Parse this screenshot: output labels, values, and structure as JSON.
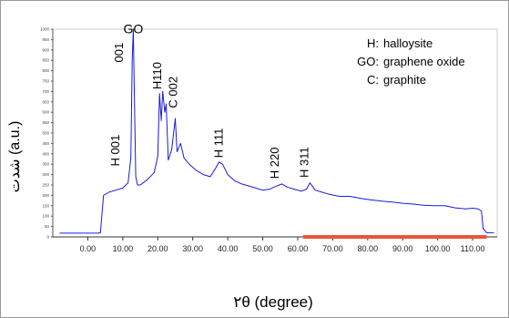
{
  "chart_data": {
    "type": "line",
    "xlabel": "۲θ (degree)",
    "ylabel": "شدت (a.u.)",
    "xlim": [
      -10,
      117
    ],
    "ylim": [
      0,
      1000
    ],
    "x_ticks": [
      "0.00",
      "10.00",
      "20.00",
      "30.00",
      "40.00",
      "50.00",
      "60.00",
      "70.00",
      "80.00",
      "90.00",
      "100.00",
      "110.00"
    ],
    "y_ticks": [
      "0",
      "50",
      "100",
      "150",
      "200",
      "250",
      "300",
      "350",
      "400",
      "450",
      "500",
      "550",
      "600",
      "650",
      "700",
      "750",
      "800",
      "850",
      "900",
      "950",
      "1000"
    ],
    "grid": false,
    "series": [
      {
        "color": "#1a1adc",
        "x": [
          -8,
          0,
          3,
          3.6,
          4.5,
          6,
          8,
          10,
          11.5,
          12.3,
          12.7,
          13.0,
          13.3,
          13.7,
          14.2,
          15,
          17,
          19,
          20,
          20.5,
          21,
          21.4,
          22,
          22.4,
          23,
          24,
          25,
          25.5,
          26.5,
          27.5,
          29,
          31,
          33,
          35,
          36.5,
          37.5,
          38.5,
          40,
          42,
          44,
          46,
          48,
          50,
          52,
          54,
          55.5,
          57,
          59,
          61,
          62.5,
          63.5,
          65,
          67,
          69,
          72,
          75,
          78,
          81,
          84,
          87,
          90,
          93,
          96,
          99,
          102,
          105,
          108,
          110,
          111.5,
          112.5,
          113,
          114,
          116
        ],
        "y": [
          18,
          18,
          18,
          20,
          200,
          215,
          225,
          235,
          260,
          380,
          850,
          1000,
          700,
          290,
          250,
          250,
          275,
          310,
          390,
          690,
          560,
          700,
          600,
          640,
          370,
          420,
          570,
          410,
          450,
          380,
          350,
          320,
          300,
          290,
          330,
          360,
          350,
          300,
          270,
          255,
          245,
          235,
          225,
          230,
          245,
          255,
          240,
          230,
          220,
          230,
          260,
          225,
          215,
          205,
          195,
          195,
          185,
          178,
          172,
          168,
          162,
          158,
          152,
          150,
          150,
          140,
          135,
          138,
          135,
          125,
          40,
          20,
          20
        ]
      }
    ],
    "x_highlight": {
      "from": 61.5,
      "to": 114,
      "color": "#e8553a"
    },
    "peak_labels": [
      {
        "text": "GO",
        "x": 13.0,
        "y": 980,
        "rotated": false
      },
      {
        "text": "001",
        "x": 10.0,
        "y": 840,
        "rotated": true
      },
      {
        "text": "H110",
        "x": 21.0,
        "y": 710,
        "rotated": true
      },
      {
        "text": "C 002",
        "x": 25.5,
        "y": 620,
        "rotated": true
      },
      {
        "text": "H 001",
        "x": 9.0,
        "y": 340,
        "rotated": true
      },
      {
        "text": "H 111",
        "x": 38.5,
        "y": 380,
        "rotated": true
      },
      {
        "text": "H 220",
        "x": 54.5,
        "y": 280,
        "rotated": true
      },
      {
        "text": "H 311",
        "x": 63.0,
        "y": 285,
        "rotated": true
      }
    ],
    "legend": [
      {
        "key": "H:",
        "label": "halloysite"
      },
      {
        "key": "GO:",
        "label": "graphene oxide"
      },
      {
        "key": "C:",
        "label": "graphite"
      }
    ]
  }
}
